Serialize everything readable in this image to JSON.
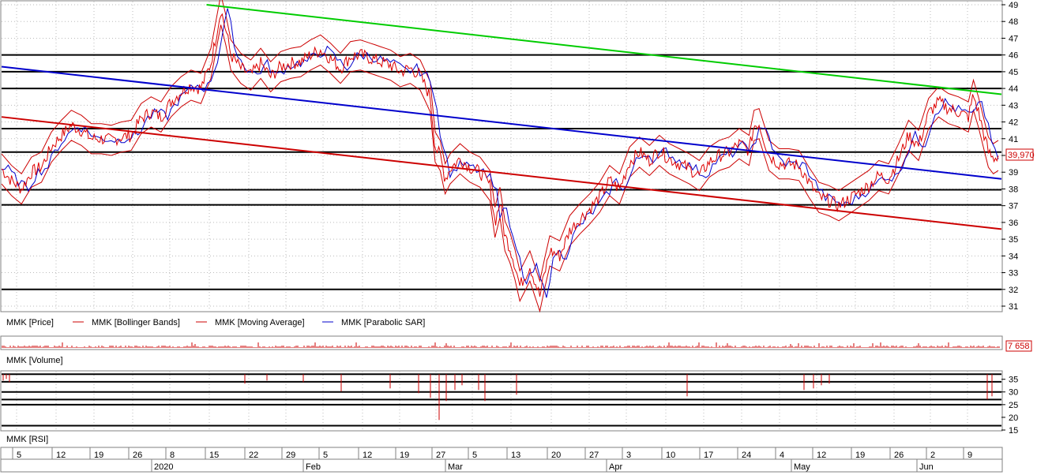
{
  "chart_data": [
    {
      "type": "line",
      "title": "",
      "ylim": [
        31,
        49
      ],
      "y_ticks": [
        "49",
        "48",
        "47",
        "46",
        "45",
        "44",
        "43",
        "42",
        "41",
        "40",
        "39",
        "38",
        "37",
        "36",
        "35",
        "34",
        "33",
        "32",
        "31"
      ],
      "last_value_label": "39,970",
      "legend": [
        {
          "name": "MMK [Price]",
          "color": "#000000"
        },
        {
          "name": "MMK [Bollinger Bands]",
          "color": "#cc0000"
        },
        {
          "name": "MMK [Moving Average]",
          "color": "#cc0000"
        },
        {
          "name": "MMK [Parabolic SAR]",
          "color": "#0000cc"
        }
      ],
      "horizontal_levels": [
        46,
        45,
        44,
        41.6,
        40.2,
        37.95,
        37.05,
        32
      ],
      "trendlines": [
        {
          "color": "#00cc00",
          "points": [
            [
              0.205,
              49.0
            ],
            [
              1.0,
              43.65
            ]
          ]
        },
        {
          "color": "#0000cc",
          "points": [
            [
              0.0,
              45.3
            ],
            [
              1.0,
              38.6
            ]
          ]
        },
        {
          "color": "#cc0000",
          "points": [
            [
              0.0,
              42.3
            ],
            [
              1.0,
              35.6
            ]
          ]
        }
      ],
      "series": [
        {
          "name": "MMK [Price]",
          "values": [
            [
              0.0,
              39.2
            ],
            [
              0.01,
              38.5
            ],
            [
              0.02,
              38.0
            ],
            [
              0.03,
              39.0
            ],
            [
              0.04,
              39.3
            ],
            [
              0.05,
              40.5
            ],
            [
              0.06,
              41.2
            ],
            [
              0.07,
              41.8
            ],
            [
              0.08,
              41.5
            ],
            [
              0.09,
              41.0
            ],
            [
              0.1,
              41.0
            ],
            [
              0.11,
              40.9
            ],
            [
              0.12,
              41.1
            ],
            [
              0.13,
              41.2
            ],
            [
              0.14,
              42.2
            ],
            [
              0.15,
              42.6
            ],
            [
              0.16,
              42.3
            ],
            [
              0.17,
              43.2
            ],
            [
              0.18,
              43.8
            ],
            [
              0.19,
              44.2
            ],
            [
              0.2,
              44.0
            ],
            [
              0.21,
              45.5
            ],
            [
              0.22,
              48.7
            ],
            [
              0.225,
              47.5
            ],
            [
              0.23,
              46.0
            ],
            [
              0.24,
              45.2
            ],
            [
              0.25,
              44.8
            ],
            [
              0.26,
              45.5
            ],
            [
              0.27,
              44.7
            ],
            [
              0.28,
              45.3
            ],
            [
              0.29,
              45.5
            ],
            [
              0.3,
              45.6
            ],
            [
              0.31,
              46.0
            ],
            [
              0.32,
              46.3
            ],
            [
              0.33,
              45.8
            ],
            [
              0.34,
              45.2
            ],
            [
              0.35,
              45.9
            ],
            [
              0.36,
              46.0
            ],
            [
              0.37,
              45.8
            ],
            [
              0.38,
              45.6
            ],
            [
              0.39,
              45.4
            ],
            [
              0.4,
              45.0
            ],
            [
              0.41,
              45.2
            ],
            [
              0.42,
              44.8
            ],
            [
              0.43,
              43.5
            ],
            [
              0.435,
              40.5
            ],
            [
              0.44,
              40.0
            ],
            [
              0.445,
              38.6
            ],
            [
              0.45,
              39.2
            ],
            [
              0.46,
              39.8
            ],
            [
              0.47,
              39.3
            ],
            [
              0.48,
              39.0
            ],
            [
              0.49,
              38.2
            ],
            [
              0.495,
              36.0
            ],
            [
              0.5,
              37.2
            ],
            [
              0.505,
              35.2
            ],
            [
              0.51,
              34.5
            ],
            [
              0.515,
              33.5
            ],
            [
              0.52,
              32.2
            ],
            [
              0.53,
              33.4
            ],
            [
              0.535,
              32.5
            ],
            [
              0.54,
              31.6
            ],
            [
              0.545,
              33.0
            ],
            [
              0.55,
              34.3
            ],
            [
              0.56,
              34.0
            ],
            [
              0.57,
              35.5
            ],
            [
              0.58,
              36.2
            ],
            [
              0.59,
              36.8
            ],
            [
              0.6,
              37.5
            ],
            [
              0.61,
              38.5
            ],
            [
              0.62,
              38.0
            ],
            [
              0.63,
              39.6
            ],
            [
              0.64,
              40.2
            ],
            [
              0.65,
              39.7
            ],
            [
              0.66,
              40.3
            ],
            [
              0.67,
              39.8
            ],
            [
              0.68,
              39.5
            ],
            [
              0.69,
              39.2
            ],
            [
              0.7,
              38.8
            ],
            [
              0.71,
              39.6
            ],
            [
              0.72,
              40.0
            ],
            [
              0.73,
              40.2
            ],
            [
              0.74,
              40.7
            ],
            [
              0.75,
              40.3
            ],
            [
              0.755,
              41.8
            ],
            [
              0.76,
              41.9
            ],
            [
              0.77,
              40.0
            ],
            [
              0.78,
              39.5
            ],
            [
              0.79,
              39.5
            ],
            [
              0.8,
              39.4
            ],
            [
              0.81,
              38.4
            ],
            [
              0.82,
              37.5
            ],
            [
              0.83,
              37.3
            ],
            [
              0.84,
              37.0
            ],
            [
              0.85,
              37.4
            ],
            [
              0.86,
              37.8
            ],
            [
              0.87,
              38.2
            ],
            [
              0.88,
              38.8
            ],
            [
              0.89,
              38.6
            ],
            [
              0.9,
              39.8
            ],
            [
              0.91,
              41.2
            ],
            [
              0.92,
              40.6
            ],
            [
              0.93,
              42.5
            ],
            [
              0.94,
              43.2
            ],
            [
              0.95,
              42.8
            ],
            [
              0.96,
              42.6
            ],
            [
              0.97,
              42.3
            ],
            [
              0.975,
              43.6
            ],
            [
              0.98,
              42.6
            ],
            [
              0.985,
              41.4
            ],
            [
              0.99,
              40.2
            ],
            [
              0.995,
              39.8
            ],
            [
              1.0,
              40.0
            ]
          ]
        }
      ]
    },
    {
      "type": "bar",
      "title": "",
      "series_name": "MMK [Volume]",
      "last_value_label": "7 658"
    },
    {
      "type": "line",
      "title": "",
      "series_name": "MMK [RSI]",
      "ylim": [
        15,
        38
      ],
      "y_ticks": [
        "35",
        "30",
        "25",
        "20",
        "15"
      ],
      "horizontal_levels": [
        37,
        34,
        30,
        27,
        25,
        16.7
      ]
    }
  ],
  "x_axis": {
    "days": [
      "5",
      "12",
      "19",
      "26",
      "8",
      "15",
      "22",
      "29",
      "5",
      "12",
      "19",
      "27",
      "5",
      "13",
      "20",
      "27",
      "3",
      "10",
      "17",
      "24",
      "4",
      "12",
      "19",
      "26",
      "2",
      "9"
    ],
    "months": [
      "2020",
      "Feb",
      "Mar",
      "Apr",
      "May",
      "Jun"
    ]
  },
  "colors": {
    "price": "#dd0000",
    "sar": "#0000cc",
    "bands": "#cc0000",
    "green_line": "#00cc00",
    "blue_line": "#0000cc",
    "red_line": "#cc0000",
    "levels": "#000000"
  }
}
